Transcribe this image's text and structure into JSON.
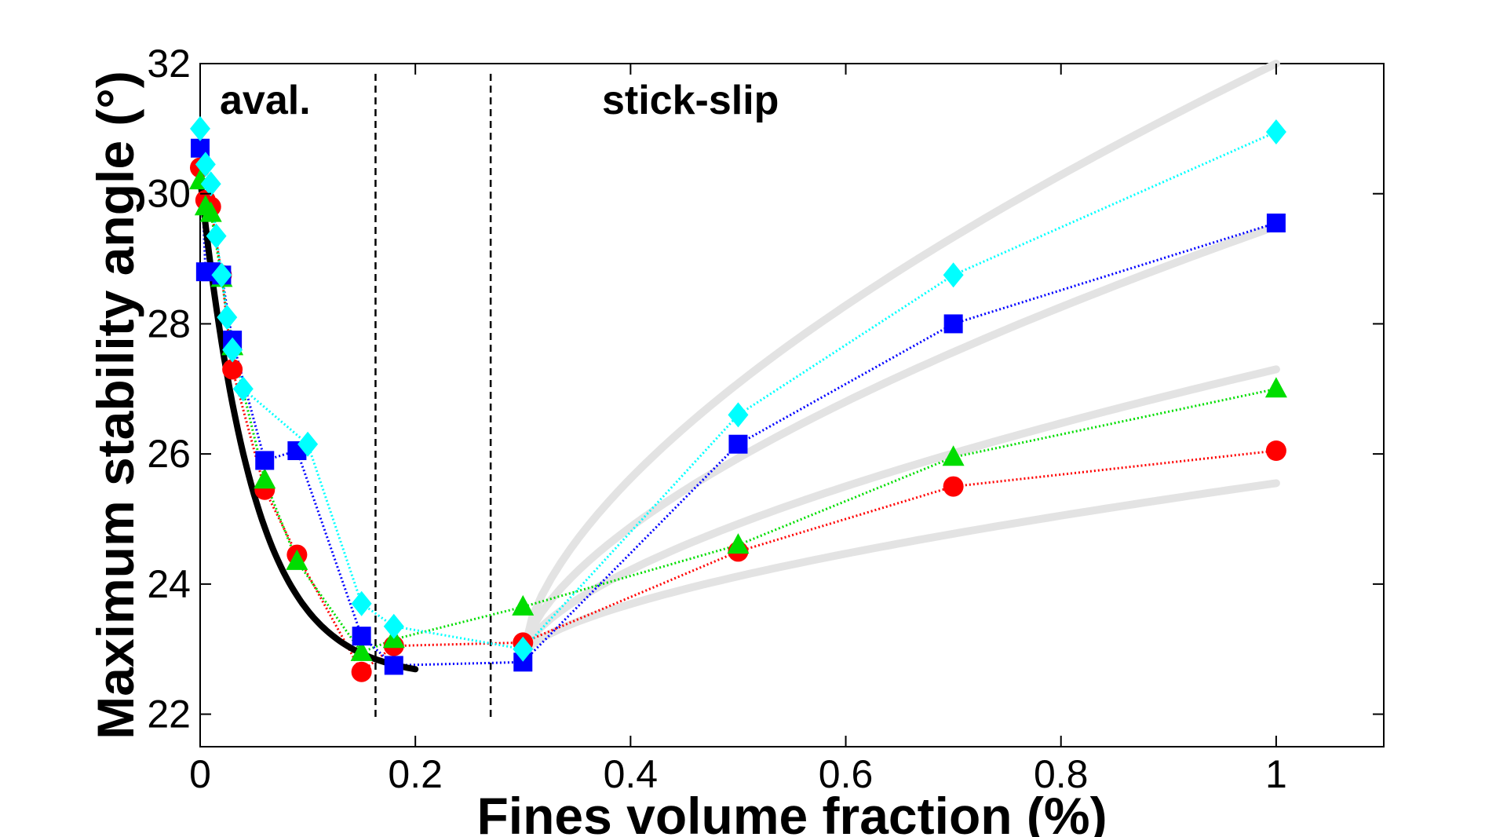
{
  "chart_data": {
    "type": "scatter",
    "title": "",
    "xlabel": "Fines volume fraction (%)",
    "ylabel": "Maximum stability angle (°)",
    "xlim": [
      0,
      1.1
    ],
    "ylim": [
      21.5,
      32
    ],
    "xticks": [
      0,
      0.2,
      0.4,
      0.6,
      0.8,
      1
    ],
    "xtick_labels": [
      "0",
      "0.2",
      "0.4",
      "0.6",
      "0.8",
      "1"
    ],
    "yticks": [
      22,
      24,
      26,
      28,
      30,
      32
    ],
    "ytick_labels": [
      "22",
      "24",
      "26",
      "28",
      "30",
      "32"
    ],
    "grid": false,
    "annotations": [
      {
        "text": "aval.",
        "x": 0.065,
        "y": 31.4
      },
      {
        "text": "stick-slip",
        "x": 0.468,
        "y": 31.4
      }
    ],
    "vertical_lines": [
      {
        "x": 0.163,
        "style": "dashed",
        "color": "#000000"
      },
      {
        "x": 0.27,
        "style": "dashed",
        "color": "#000000"
      }
    ],
    "series": [
      {
        "name": "red",
        "color": "#ff0000",
        "marker": "circle",
        "x": [
          0,
          0.005,
          0.01,
          0.02,
          0.03,
          0.06,
          0.09,
          0.15,
          0.18,
          0.3,
          0.5,
          0.7,
          1.0
        ],
        "y": [
          30.4,
          29.9,
          29.8,
          28.75,
          27.3,
          25.45,
          24.45,
          22.65,
          23.05,
          23.1,
          24.5,
          25.5,
          26.05
        ]
      },
      {
        "name": "green",
        "color": "#00dd00",
        "marker": "triangle",
        "x": [
          0,
          0.005,
          0.01,
          0.02,
          0.03,
          0.06,
          0.09,
          0.15,
          0.18,
          0.3,
          0.5,
          0.7,
          1.0
        ],
        "y": [
          30.2,
          29.8,
          29.7,
          28.7,
          27.65,
          25.6,
          24.35,
          22.95,
          23.15,
          23.65,
          24.6,
          25.95,
          27.0
        ]
      },
      {
        "name": "blue",
        "color": "#0000ff",
        "marker": "square",
        "x": [
          0,
          0.005,
          0.01,
          0.02,
          0.03,
          0.06,
          0.09,
          0.15,
          0.18,
          0.3,
          0.5,
          0.7,
          1.0
        ],
        "y": [
          30.7,
          28.8,
          28.8,
          28.75,
          27.75,
          25.9,
          26.05,
          23.2,
          22.75,
          22.8,
          26.15,
          28.0,
          29.55
        ]
      },
      {
        "name": "cyan",
        "color": "#00ffff",
        "marker": "diamond",
        "x": [
          0,
          0.005,
          0.01,
          0.015,
          0.02,
          0.025,
          0.03,
          0.04,
          0.1,
          0.15,
          0.18,
          0.3,
          0.5,
          0.7,
          1.0
        ],
        "y": [
          31.0,
          30.45,
          30.15,
          29.35,
          28.75,
          28.1,
          27.6,
          27.0,
          26.15,
          23.7,
          23.35,
          23.0,
          26.6,
          28.75,
          30.95
        ]
      }
    ],
    "fit_curves": [
      {
        "name": "black-fit",
        "color": "#000000",
        "x0": 0,
        "x1": 0.2,
        "form": "exp-decay",
        "y0": 30.25,
        "yinf": 22.55,
        "k": 20
      },
      {
        "name": "fit-gray-1",
        "color": "#e3e3e3",
        "x0": 0.3,
        "x1": 1.0,
        "y0": 22.9,
        "y1": 32.0,
        "p": 0.62
      },
      {
        "name": "fit-gray-2",
        "color": "#e3e3e3",
        "x0": 0.3,
        "x1": 1.0,
        "y0": 22.9,
        "y1": 29.5,
        "p": 0.62
      },
      {
        "name": "fit-gray-3",
        "color": "#e3e3e3",
        "x0": 0.3,
        "x1": 1.0,
        "y0": 22.9,
        "y1": 27.3,
        "p": 0.62
      },
      {
        "name": "fit-gray-4",
        "color": "#e3e3e3",
        "x0": 0.3,
        "x1": 1.0,
        "y0": 22.9,
        "y1": 25.55,
        "p": 0.62
      }
    ]
  }
}
